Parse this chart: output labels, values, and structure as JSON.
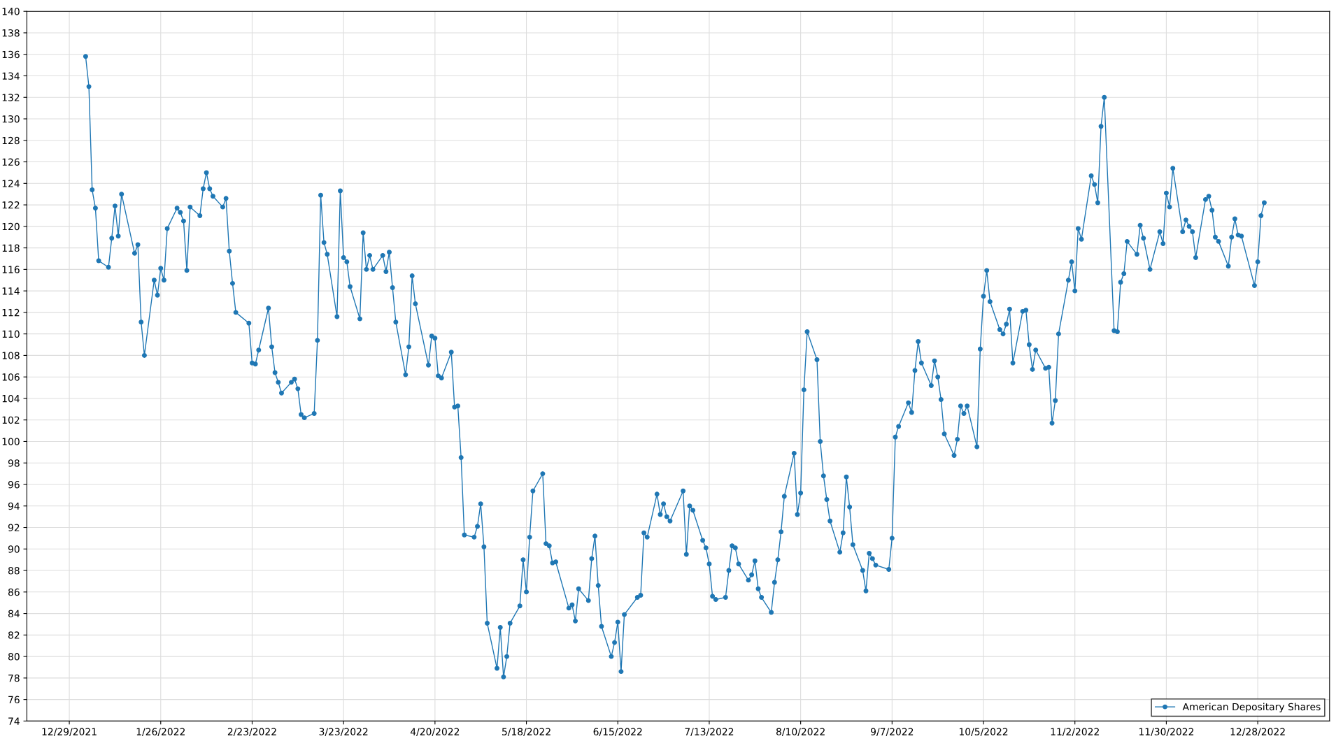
{
  "chart_data": {
    "type": "line",
    "x": [
      "2022-01-03",
      "2022-01-04",
      "2022-01-05",
      "2022-01-06",
      "2022-01-07",
      "2022-01-10",
      "2022-01-11",
      "2022-01-12",
      "2022-01-13",
      "2022-01-14",
      "2022-01-18",
      "2022-01-19",
      "2022-01-20",
      "2022-01-21",
      "2022-01-24",
      "2022-01-25",
      "2022-01-26",
      "2022-01-27",
      "2022-01-28",
      "2022-01-31",
      "2022-02-01",
      "2022-02-02",
      "2022-02-03",
      "2022-02-04",
      "2022-02-07",
      "2022-02-08",
      "2022-02-09",
      "2022-02-10",
      "2022-02-11",
      "2022-02-14",
      "2022-02-15",
      "2022-02-16",
      "2022-02-17",
      "2022-02-18",
      "2022-02-22",
      "2022-02-23",
      "2022-02-24",
      "2022-02-25",
      "2022-02-28",
      "2022-03-01",
      "2022-03-02",
      "2022-03-03",
      "2022-03-04",
      "2022-03-07",
      "2022-03-08",
      "2022-03-09",
      "2022-03-10",
      "2022-03-11",
      "2022-03-14",
      "2022-03-15",
      "2022-03-16",
      "2022-03-17",
      "2022-03-18",
      "2022-03-21",
      "2022-03-22",
      "2022-03-23",
      "2022-03-24",
      "2022-03-25",
      "2022-03-28",
      "2022-03-29",
      "2022-03-30",
      "2022-03-31",
      "2022-04-01",
      "2022-04-04",
      "2022-04-05",
      "2022-04-06",
      "2022-04-07",
      "2022-04-08",
      "2022-04-11",
      "2022-04-12",
      "2022-04-13",
      "2022-04-14",
      "2022-04-18",
      "2022-04-19",
      "2022-04-20",
      "2022-04-21",
      "2022-04-22",
      "2022-04-25",
      "2022-04-26",
      "2022-04-27",
      "2022-04-28",
      "2022-04-29",
      "2022-05-02",
      "2022-05-03",
      "2022-05-04",
      "2022-05-05",
      "2022-05-06",
      "2022-05-09",
      "2022-05-10",
      "2022-05-11",
      "2022-05-12",
      "2022-05-13",
      "2022-05-16",
      "2022-05-17",
      "2022-05-18",
      "2022-05-19",
      "2022-05-20",
      "2022-05-23",
      "2022-05-24",
      "2022-05-25",
      "2022-05-26",
      "2022-05-27",
      "2022-05-31",
      "2022-06-01",
      "2022-06-02",
      "2022-06-03",
      "2022-06-06",
      "2022-06-07",
      "2022-06-08",
      "2022-06-09",
      "2022-06-10",
      "2022-06-13",
      "2022-06-14",
      "2022-06-15",
      "2022-06-16",
      "2022-06-17",
      "2022-06-21",
      "2022-06-22",
      "2022-06-23",
      "2022-06-24",
      "2022-06-27",
      "2022-06-28",
      "2022-06-29",
      "2022-06-30",
      "2022-07-01",
      "2022-07-05",
      "2022-07-06",
      "2022-07-07",
      "2022-07-08",
      "2022-07-11",
      "2022-07-12",
      "2022-07-13",
      "2022-07-14",
      "2022-07-15",
      "2022-07-18",
      "2022-07-19",
      "2022-07-20",
      "2022-07-21",
      "2022-07-22",
      "2022-07-25",
      "2022-07-26",
      "2022-07-27",
      "2022-07-28",
      "2022-07-29",
      "2022-08-01",
      "2022-08-02",
      "2022-08-03",
      "2022-08-04",
      "2022-08-05",
      "2022-08-08",
      "2022-08-09",
      "2022-08-10",
      "2022-08-11",
      "2022-08-12",
      "2022-08-15",
      "2022-08-16",
      "2022-08-17",
      "2022-08-18",
      "2022-08-19",
      "2022-08-22",
      "2022-08-23",
      "2022-08-24",
      "2022-08-25",
      "2022-08-26",
      "2022-08-29",
      "2022-08-30",
      "2022-08-31",
      "2022-09-01",
      "2022-09-02",
      "2022-09-06",
      "2022-09-07",
      "2022-09-08",
      "2022-09-09",
      "2022-09-12",
      "2022-09-13",
      "2022-09-14",
      "2022-09-15",
      "2022-09-16",
      "2022-09-19",
      "2022-09-20",
      "2022-09-21",
      "2022-09-22",
      "2022-09-23",
      "2022-09-26",
      "2022-09-27",
      "2022-09-28",
      "2022-09-29",
      "2022-09-30",
      "2022-10-03",
      "2022-10-04",
      "2022-10-05",
      "2022-10-06",
      "2022-10-07",
      "2022-10-10",
      "2022-10-11",
      "2022-10-12",
      "2022-10-13",
      "2022-10-14",
      "2022-10-17",
      "2022-10-18",
      "2022-10-19",
      "2022-10-20",
      "2022-10-21",
      "2022-10-24",
      "2022-10-25",
      "2022-10-26",
      "2022-10-27",
      "2022-10-28",
      "2022-10-31",
      "2022-11-01",
      "2022-11-02",
      "2022-11-03",
      "2022-11-04",
      "2022-11-07",
      "2022-11-08",
      "2022-11-09",
      "2022-11-10",
      "2022-11-11",
      "2022-11-14",
      "2022-11-15",
      "2022-11-16",
      "2022-11-17",
      "2022-11-18",
      "2022-11-21",
      "2022-11-22",
      "2022-11-23",
      "2022-11-25",
      "2022-11-28",
      "2022-11-29",
      "2022-11-30",
      "2022-12-01",
      "2022-12-02",
      "2022-12-05",
      "2022-12-06",
      "2022-12-07",
      "2022-12-08",
      "2022-12-09",
      "2022-12-12",
      "2022-12-13",
      "2022-12-14",
      "2022-12-15",
      "2022-12-16",
      "2022-12-19",
      "2022-12-20",
      "2022-12-21",
      "2022-12-22",
      "2022-12-23",
      "2022-12-27",
      "2022-12-28",
      "2022-12-29",
      "2022-12-30"
    ],
    "series": [
      {
        "name": "American Depositary Shares",
        "color": "#1f77b4",
        "values": [
          135.8,
          133,
          123.4,
          121.7,
          116.8,
          116.2,
          118.9,
          121.9,
          119.1,
          123,
          117.5,
          118.3,
          111.1,
          108,
          115,
          113.6,
          116.1,
          115,
          119.8,
          121.7,
          121.3,
          120.5,
          115.9,
          121.8,
          121,
          123.5,
          125,
          123.5,
          122.8,
          121.8,
          122.6,
          117.7,
          114.7,
          112,
          111,
          107.3,
          107.2,
          108.5,
          112.4,
          108.8,
          106.4,
          105.5,
          104.5,
          105.5,
          105.8,
          104.9,
          102.5,
          102.2,
          102.6,
          109.4,
          122.9,
          118.5,
          117.4,
          111.6,
          123.3,
          117.1,
          116.7,
          114.4,
          111.4,
          119.4,
          116,
          117.3,
          116,
          117.3,
          115.8,
          117.6,
          114.3,
          111.1,
          106.2,
          108.8,
          115.4,
          112.8,
          107.1,
          109.8,
          109.6,
          106.1,
          105.9,
          108.3,
          103.2,
          103.3,
          98.5,
          91.3,
          91.1,
          92.1,
          94.2,
          90.2,
          83.1,
          78.9,
          82.7,
          78.1,
          80,
          83.1,
          84.7,
          89,
          86,
          91.1,
          95.4,
          97,
          90.5,
          90.3,
          88.7,
          88.8,
          84.5,
          84.8,
          83.3,
          86.3,
          85.2,
          89.1,
          91.2,
          86.6,
          82.8,
          80,
          81.3,
          83.2,
          78.6,
          83.9,
          85.5,
          85.7,
          91.5,
          91.1,
          95.1,
          93.2,
          94.2,
          93,
          92.6,
          95.4,
          89.5,
          94,
          93.6,
          90.8,
          90.1,
          88.6,
          85.6,
          85.3,
          85.5,
          88,
          90.3,
          90.1,
          88.6,
          87.1,
          87.6,
          88.9,
          86.3,
          85.5,
          84.1,
          86.9,
          89,
          91.6,
          94.9,
          98.9,
          93.2,
          95.2,
          104.8,
          110.2,
          107.6,
          100,
          96.8,
          94.6,
          92.6,
          89.7,
          91.5,
          96.7,
          93.9,
          90.4,
          88,
          86.1,
          89.6,
          89.1,
          88.5,
          88.1,
          91,
          100.4,
          101.4,
          103.6,
          102.7,
          106.6,
          109.3,
          107.3,
          105.2,
          107.5,
          106,
          103.9,
          100.7,
          98.7,
          100.2,
          103.3,
          102.6,
          103.3,
          99.5,
          108.6,
          113.5,
          115.9,
          113,
          110.4,
          110,
          110.9,
          112.3,
          107.3,
          112.1,
          112.2,
          109,
          106.7,
          108.5,
          106.8,
          106.9,
          101.7,
          103.8,
          110,
          115,
          116.7,
          114,
          119.8,
          118.8,
          124.7,
          123.9,
          122.2,
          129.3,
          132,
          110.3,
          110.2,
          114.8,
          115.6,
          118.6,
          117.4,
          120.1,
          118.9,
          116,
          119.5,
          118.4,
          123.1,
          121.8,
          125.4,
          119.5,
          120.6,
          120,
          119.5,
          117.1,
          122.5,
          122.8,
          121.5,
          119,
          118.6,
          116.3,
          119,
          120.7,
          119.2,
          119.1,
          114.5,
          116.7,
          121,
          122.2
        ]
      }
    ],
    "xlim": [
      "2021-12-16",
      "2023-01-19"
    ],
    "xticks": [
      {
        "value": "2021-12-29",
        "label": "12/29/2021"
      },
      {
        "value": "2022-01-26",
        "label": "1/26/2022"
      },
      {
        "value": "2022-02-23",
        "label": "2/23/2022"
      },
      {
        "value": "2022-03-23",
        "label": "3/23/2022"
      },
      {
        "value": "2022-04-20",
        "label": "4/20/2022"
      },
      {
        "value": "2022-05-18",
        "label": "5/18/2022"
      },
      {
        "value": "2022-06-15",
        "label": "6/15/2022"
      },
      {
        "value": "2022-07-13",
        "label": "7/13/2022"
      },
      {
        "value": "2022-08-10",
        "label": "8/10/2022"
      },
      {
        "value": "2022-09-07",
        "label": "9/7/2022"
      },
      {
        "value": "2022-10-05",
        "label": "10/5/2022"
      },
      {
        "value": "2022-11-02",
        "label": "11/2/2022"
      },
      {
        "value": "2022-11-30",
        "label": "11/30/2022"
      },
      {
        "value": "2022-12-28",
        "label": "12/28/2022"
      }
    ],
    "ylim": [
      74,
      140
    ],
    "yticks": [
      74,
      76,
      78,
      80,
      82,
      84,
      86,
      88,
      90,
      92,
      94,
      96,
      98,
      100,
      102,
      104,
      106,
      108,
      110,
      112,
      114,
      116,
      118,
      120,
      122,
      124,
      126,
      128,
      130,
      132,
      134,
      136,
      138,
      140
    ],
    "grid": true,
    "legend": "bottom right",
    "marker": "circle",
    "line_style": "solid"
  }
}
